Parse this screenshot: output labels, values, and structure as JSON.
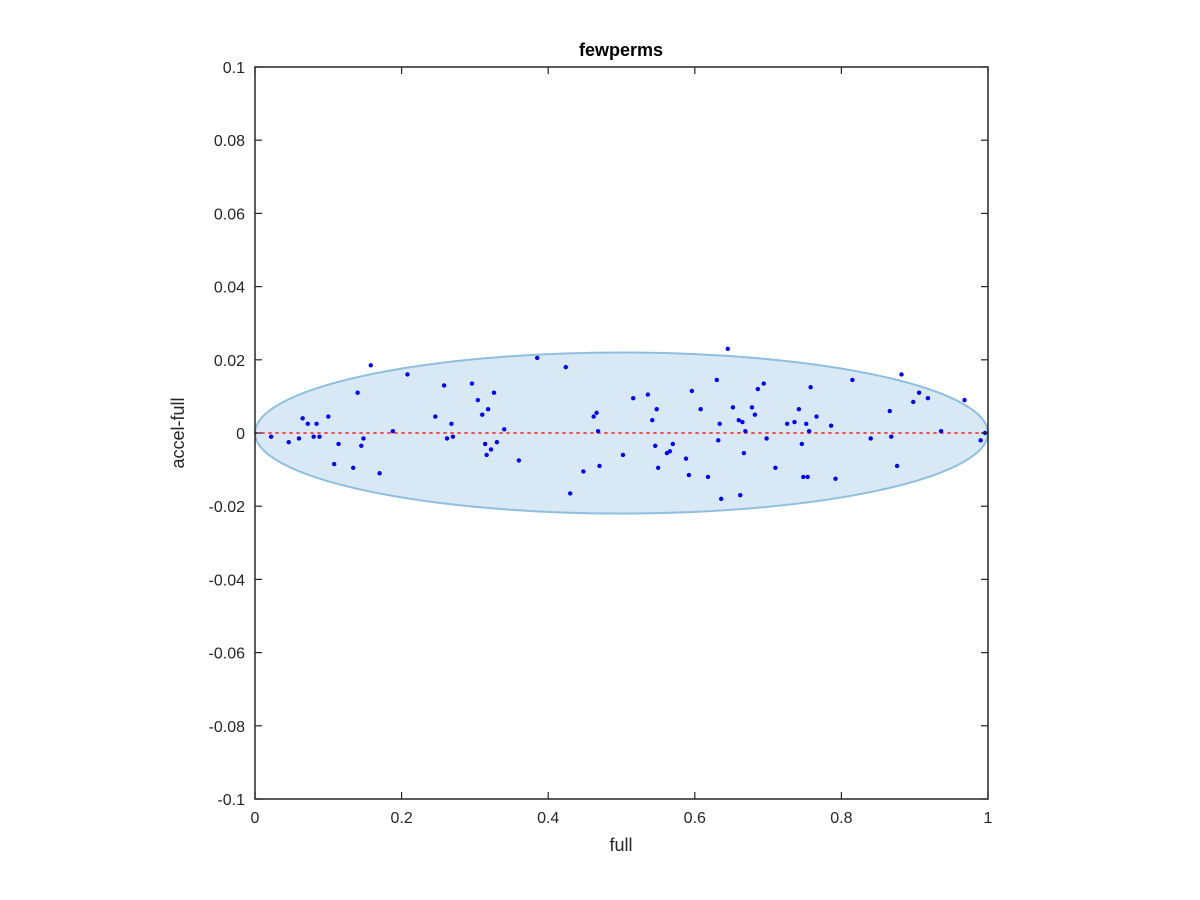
{
  "chart_data": {
    "type": "scatter",
    "title": "fewperms",
    "xlabel": "full",
    "ylabel": "accel-full",
    "xlim": [
      0,
      1
    ],
    "ylim": [
      -0.1,
      0.1
    ],
    "xticks": [
      0,
      0.2,
      0.4,
      0.6,
      0.8,
      1
    ],
    "xtick_labels": [
      "0",
      "0.2",
      "0.4",
      "0.6",
      "0.8",
      "1"
    ],
    "yticks": [
      0.1,
      0.08,
      0.06,
      0.04,
      0.02,
      0,
      -0.02,
      -0.04,
      -0.06,
      -0.08,
      -0.1
    ],
    "ytick_labels": [
      "0.1",
      "0.08",
      "0.06",
      "0.04",
      "0.02",
      "0",
      "-0.02",
      "-0.04",
      "-0.06",
      "-0.08",
      "-0.1"
    ],
    "grid": false,
    "colors": {
      "points": "#0000ff",
      "ellipse_fill": "#d9e8f5",
      "ellipse_stroke": "#8fbfdf",
      "reference_line": "#ff3333",
      "axes": "#262626"
    },
    "ellipse": {
      "cx": 0.5,
      "cy": 0,
      "rx": 0.5,
      "ry": 0.022
    },
    "reference_line": {
      "y": 0,
      "style": "dotted"
    },
    "points": [
      [
        0.022,
        -0.001
      ],
      [
        0.046,
        -0.0025
      ],
      [
        0.06,
        -0.0015
      ],
      [
        0.065,
        0.004
      ],
      [
        0.072,
        0.0025
      ],
      [
        0.08,
        -0.001
      ],
      [
        0.084,
        0.0025
      ],
      [
        0.088,
        -0.001
      ],
      [
        0.1,
        0.0045
      ],
      [
        0.108,
        -0.0085
      ],
      [
        0.114,
        -0.003
      ],
      [
        0.134,
        -0.0095
      ],
      [
        0.14,
        0.011
      ],
      [
        0.145,
        -0.0035
      ],
      [
        0.148,
        -0.0015
      ],
      [
        0.158,
        0.0185
      ],
      [
        0.17,
        -0.011
      ],
      [
        0.188,
        0.0005
      ],
      [
        0.208,
        0.016
      ],
      [
        0.246,
        0.0045
      ],
      [
        0.258,
        0.013
      ],
      [
        0.262,
        -0.0015
      ],
      [
        0.268,
        0.0025
      ],
      [
        0.27,
        -0.001
      ],
      [
        0.296,
        0.0135
      ],
      [
        0.304,
        0.009
      ],
      [
        0.31,
        0.005
      ],
      [
        0.314,
        -0.003
      ],
      [
        0.316,
        -0.006
      ],
      [
        0.318,
        0.0065
      ],
      [
        0.322,
        -0.0045
      ],
      [
        0.326,
        0.011
      ],
      [
        0.33,
        -0.0025
      ],
      [
        0.34,
        0.001
      ],
      [
        0.36,
        -0.0075
      ],
      [
        0.385,
        0.0205
      ],
      [
        0.424,
        0.018
      ],
      [
        0.43,
        -0.0165
      ],
      [
        0.448,
        -0.0105
      ],
      [
        0.462,
        0.0045
      ],
      [
        0.466,
        0.0055
      ],
      [
        0.468,
        0.0005
      ],
      [
        0.47,
        -0.009
      ],
      [
        0.502,
        -0.006
      ],
      [
        0.516,
        0.0095
      ],
      [
        0.536,
        0.0105
      ],
      [
        0.542,
        0.0035
      ],
      [
        0.546,
        -0.0035
      ],
      [
        0.548,
        0.0065
      ],
      [
        0.55,
        -0.0095
      ],
      [
        0.562,
        -0.0055
      ],
      [
        0.566,
        -0.005
      ],
      [
        0.57,
        -0.003
      ],
      [
        0.588,
        -0.007
      ],
      [
        0.592,
        -0.0115
      ],
      [
        0.596,
        0.0115
      ],
      [
        0.608,
        0.0065
      ],
      [
        0.618,
        -0.012
      ],
      [
        0.63,
        0.0145
      ],
      [
        0.632,
        -0.002
      ],
      [
        0.634,
        0.0025
      ],
      [
        0.636,
        -0.018
      ],
      [
        0.645,
        0.023
      ],
      [
        0.652,
        0.007
      ],
      [
        0.66,
        0.0035
      ],
      [
        0.662,
        -0.017
      ],
      [
        0.665,
        0.003
      ],
      [
        0.667,
        -0.0055
      ],
      [
        0.669,
        0.0005
      ],
      [
        0.678,
        0.007
      ],
      [
        0.682,
        0.005
      ],
      [
        0.686,
        0.012
      ],
      [
        0.694,
        0.0135
      ],
      [
        0.698,
        -0.0015
      ],
      [
        0.71,
        -0.0095
      ],
      [
        0.726,
        0.0025
      ],
      [
        0.736,
        0.003
      ],
      [
        0.742,
        0.0065
      ],
      [
        0.746,
        -0.003
      ],
      [
        0.748,
        -0.012
      ],
      [
        0.752,
        0.0025
      ],
      [
        0.754,
        -0.012
      ],
      [
        0.756,
        0.0005
      ],
      [
        0.758,
        0.0125
      ],
      [
        0.766,
        0.0045
      ],
      [
        0.786,
        0.002
      ],
      [
        0.792,
        -0.0125
      ],
      [
        0.815,
        0.0145
      ],
      [
        0.84,
        -0.0015
      ],
      [
        0.866,
        0.006
      ],
      [
        0.868,
        -0.001
      ],
      [
        0.876,
        -0.009
      ],
      [
        0.882,
        0.016
      ],
      [
        0.898,
        0.0085
      ],
      [
        0.906,
        0.011
      ],
      [
        0.918,
        0.0095
      ],
      [
        0.936,
        0.0005
      ],
      [
        0.968,
        0.009
      ],
      [
        0.99,
        -0.002
      ],
      [
        0.996,
        0.0
      ]
    ]
  }
}
